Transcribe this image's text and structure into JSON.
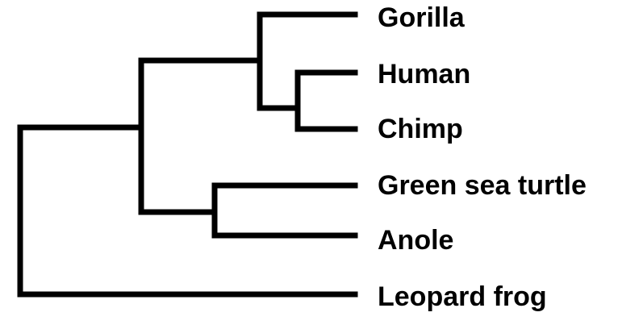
{
  "tree": {
    "taxa": [
      {
        "id": "gorilla",
        "label": "Gorilla"
      },
      {
        "id": "human",
        "label": "Human"
      },
      {
        "id": "chimp",
        "label": "Chimp"
      },
      {
        "id": "green-sea-turtle",
        "label": "Green sea turtle"
      },
      {
        "id": "anole",
        "label": "Anole"
      },
      {
        "id": "leopard-frog",
        "label": "Leopard frog"
      }
    ],
    "topology": [
      [
        "gorilla",
        [
          "human",
          "chimp"
        ]
      ],
      [
        "green-sea-turtle",
        "anole"
      ]
    ],
    "outgroup": "leopard-frog",
    "line_color": "#000000"
  }
}
